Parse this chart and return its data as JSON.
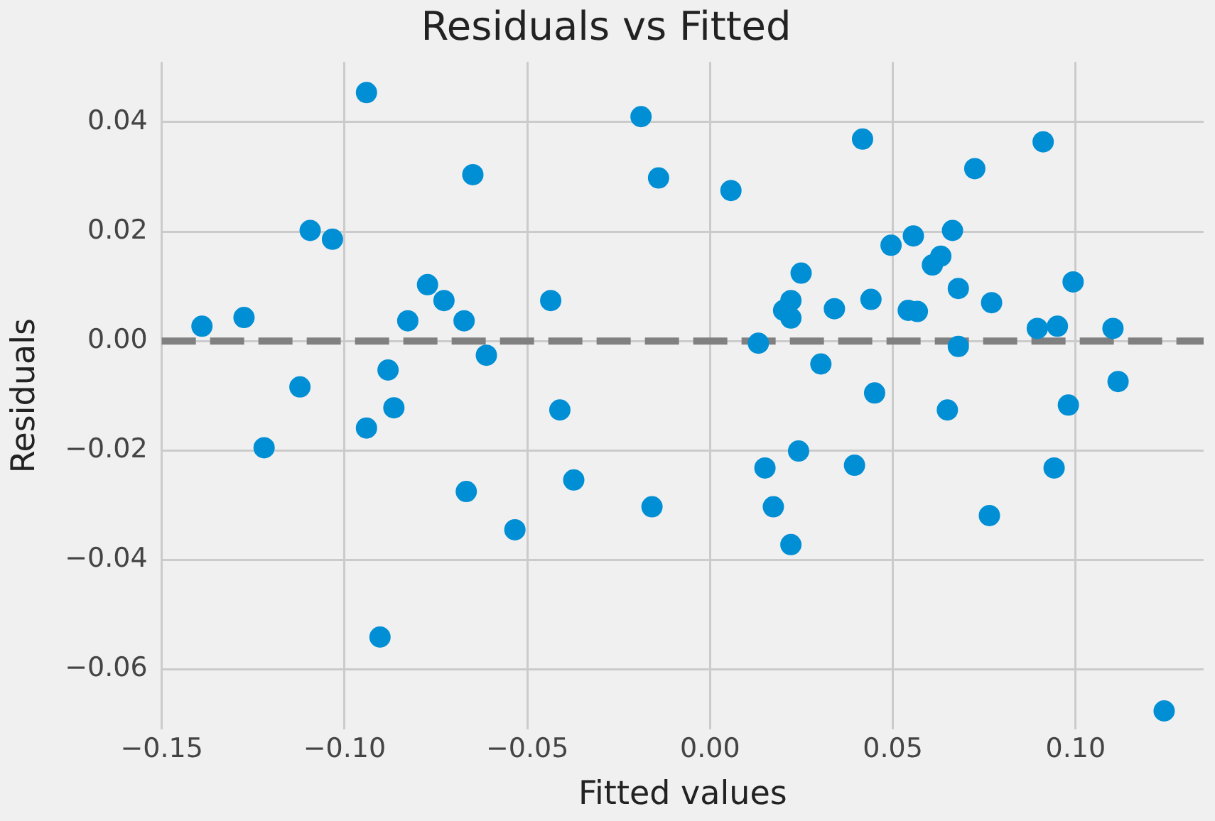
{
  "chart_data": {
    "type": "scatter",
    "title": "Residuals vs Fitted",
    "xlabel": "Fitted values",
    "ylabel": "Residuals",
    "x": [
      -0.139,
      -0.1275,
      -0.1094,
      -0.1033,
      -0.094,
      -0.0773,
      -0.0728,
      -0.0827,
      -0.0673,
      -0.0649,
      -0.0612,
      -0.0436,
      -0.0189,
      -0.0141,
      -0.1122,
      -0.0881,
      -0.0865,
      -0.094,
      -0.0411,
      -0.122,
      -0.0667,
      -0.0373,
      -0.0534,
      -0.0159,
      -0.0903,
      0.0057,
      0.0417,
      0.0911,
      0.0724,
      0.0495,
      0.0556,
      0.0663,
      0.0631,
      0.0608,
      0.0249,
      0.0221,
      0.0201,
      0.0221,
      0.034,
      0.044,
      0.0542,
      0.0567,
      0.0679,
      0.077,
      0.0993,
      0.0895,
      0.095,
      0.1102,
      0.0132,
      0.0679,
      0.0303,
      0.045,
      0.1116,
      0.0649,
      0.098,
      0.015,
      0.0242,
      0.0395,
      0.0173,
      0.0221,
      0.0941,
      0.0764,
      0.1242
    ],
    "values": [
      0.0027,
      0.0043,
      0.0202,
      0.0186,
      0.0454,
      0.0103,
      0.0074,
      0.0037,
      0.0037,
      0.0304,
      -0.0026,
      0.0074,
      0.041,
      0.0298,
      -0.0084,
      -0.0053,
      -0.0122,
      -0.0159,
      -0.0126,
      -0.0195,
      -0.0275,
      -0.0254,
      -0.0345,
      -0.0303,
      -0.0541,
      0.0275,
      0.0369,
      0.0364,
      0.0315,
      0.0175,
      0.0192,
      0.0202,
      0.0155,
      0.0139,
      0.0124,
      0.0074,
      0.0056,
      0.0042,
      0.0059,
      0.0076,
      0.0056,
      0.0054,
      0.0096,
      0.007,
      0.0108,
      0.0023,
      0.0027,
      0.0023,
      -0.0004,
      -0.001,
      -0.0042,
      -0.0095,
      -0.0074,
      -0.0126,
      -0.0117,
      -0.0232,
      -0.0201,
      -0.0227,
      -0.0303,
      -0.0372,
      -0.0232,
      -0.0319,
      -0.0676
    ],
    "color": "#008fd5",
    "marker": "circle",
    "xlim": [
      -0.15,
      0.135
    ],
    "xticks": [
      {
        "value": -0.15,
        "label": "−0.15"
      },
      {
        "value": -0.1,
        "label": "−0.10"
      },
      {
        "value": -0.05,
        "label": "−0.05"
      },
      {
        "value": 0,
        "label": "0.00"
      },
      {
        "value": 0.05,
        "label": "0.05"
      },
      {
        "value": 0.1,
        "label": "0.10"
      }
    ],
    "ylim": [
      -0.071,
      0.051
    ],
    "yticks": [
      {
        "value": -0.06,
        "label": "−0.06"
      },
      {
        "value": -0.04,
        "label": "−0.04"
      },
      {
        "value": -0.02,
        "label": "−0.02"
      },
      {
        "value": 0,
        "label": "0.00"
      },
      {
        "value": 0.02,
        "label": "0.02"
      },
      {
        "value": 0.04,
        "label": "0.04"
      }
    ],
    "grid": true,
    "ref_lines": [
      {
        "axis": "y",
        "value": 0,
        "color": "#808080",
        "line_style": "dashed"
      }
    ]
  }
}
